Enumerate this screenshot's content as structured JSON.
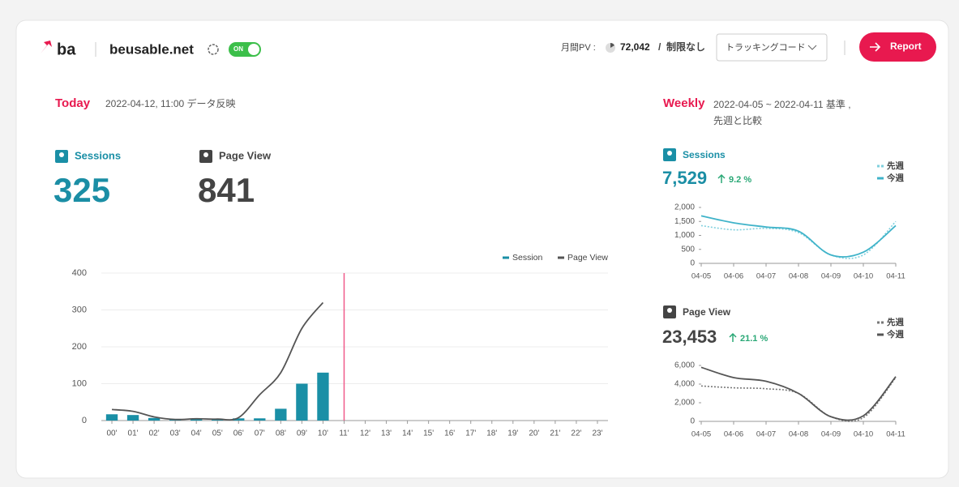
{
  "header": {
    "site_short": "ba",
    "site": "beusable.net",
    "toggle": "ON",
    "pv_label": "月間PV :",
    "pv_value": "72,042",
    "pv_sep": "/",
    "pv_limit": "制限なし",
    "dropdown": "トラッキングコード",
    "report": "Report"
  },
  "today": {
    "title": "Today",
    "subtitle": "2022-04-12, 11:00 データ反映",
    "sessions_label": "Sessions",
    "sessions": "325",
    "pageview_label": "Page View",
    "pageview": "841"
  },
  "weekly": {
    "title": "Weekly",
    "subtitle": "2022-04-05 ~ 2022-04-11 基準 ,",
    "subtitle2": "先週と比較",
    "sessions_label": "Sessions",
    "sessions": "7,529",
    "sessions_change": "9.2 %",
    "pageview_label": "Page View",
    "pageview": "23,453",
    "pageview_change": "21.1 %"
  },
  "chart_data": [
    {
      "type": "combo",
      "categories": [
        "00'",
        "01'",
        "02'",
        "03'",
        "04'",
        "05'",
        "06'",
        "07'",
        "08'",
        "09'",
        "10'",
        "11'",
        "12'",
        "13'",
        "14'",
        "15'",
        "16'",
        "17'",
        "18'",
        "19'",
        "20'",
        "21'",
        "22'",
        "23'"
      ],
      "series": [
        {
          "name": "Session",
          "type": "bar",
          "color": "#1a8fa6",
          "values": [
            17,
            15,
            7,
            3,
            5,
            3,
            6,
            6,
            32,
            100,
            130,
            null,
            null,
            null,
            null,
            null,
            null,
            null,
            null,
            null,
            null,
            null,
            null,
            null
          ]
        },
        {
          "name": "Page View",
          "type": "line",
          "color": "#555555",
          "values": [
            30,
            25,
            10,
            3,
            5,
            4,
            8,
            70,
            130,
            250,
            320,
            null,
            null,
            null,
            null,
            null,
            null,
            null,
            null,
            null,
            null,
            null,
            null,
            null
          ]
        }
      ],
      "ylim": [
        0,
        400
      ],
      "yticks": [
        0,
        100,
        200,
        300,
        400
      ],
      "grid": true,
      "legend": "top-right"
    },
    {
      "type": "line",
      "categories": [
        "04-05",
        "04-06",
        "04-07",
        "04-08",
        "04-09",
        "04-10",
        "04-11"
      ],
      "series": [
        {
          "name": "先週",
          "style": "dotted",
          "color": "#7fd0de",
          "values": [
            1350,
            1200,
            1250,
            1100,
            300,
            300,
            1500
          ]
        },
        {
          "name": "今週",
          "style": "solid",
          "color": "#3fb3c9",
          "values": [
            1700,
            1450,
            1300,
            1150,
            300,
            400,
            1350
          ]
        }
      ],
      "ylim": [
        0,
        2000
      ],
      "yticks": [
        0,
        500,
        {
          "value": 1000,
          "label": "1,000"
        },
        {
          "value": 1500,
          "label": "1,500"
        },
        {
          "value": 2000,
          "label": "2,000"
        }
      ],
      "grid": false,
      "legend": "top-right"
    },
    {
      "type": "line",
      "categories": [
        "04-05",
        "04-06",
        "04-07",
        "04-08",
        "04-09",
        "04-10",
        "04-11"
      ],
      "series": [
        {
          "name": "先週",
          "style": "dotted",
          "color": "#777777",
          "values": [
            3800,
            3600,
            3500,
            3000,
            500,
            400,
            4700
          ]
        },
        {
          "name": "今週",
          "style": "solid",
          "color": "#555555",
          "values": [
            5800,
            4700,
            4300,
            3000,
            500,
            600,
            4800
          ]
        }
      ],
      "ylim": [
        0,
        6000
      ],
      "yticks": [
        0,
        {
          "value": 2000,
          "label": "2,000"
        },
        {
          "value": 4000,
          "label": "4,000"
        },
        {
          "value": 6000,
          "label": "6,000"
        }
      ],
      "grid": false,
      "legend": "top-right"
    }
  ]
}
